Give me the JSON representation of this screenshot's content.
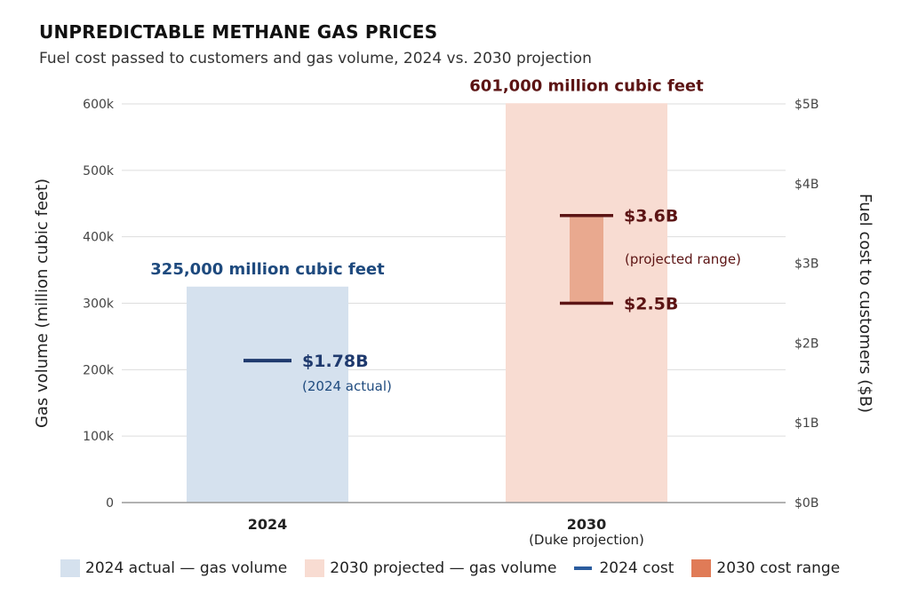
{
  "title": "UNPREDICTABLE METHANE GAS PRICES",
  "subtitle": "Fuel cost passed to customers and gas volume, 2024 vs. 2030 projection",
  "colors": {
    "bar_2024": "#d5e1ee",
    "bar_2030": "#f8dcd2",
    "cost_2024": "#1f3a6e",
    "range_2030": "#e9a98f",
    "range_line": "#5c1414",
    "label_2024": "#1e4a7e",
    "label_2030": "#5c1414",
    "legend_cost": "#2b5c9e",
    "legend_range": "#e07b57",
    "grid": "#dddddd",
    "axis": "#999999"
  },
  "chart_data": {
    "type": "bar",
    "categories": [
      "2024",
      "2030"
    ],
    "category_sublabels": [
      "",
      "(Duke projection)"
    ],
    "series": [
      {
        "name": "2024 actual — gas volume",
        "axis": "left",
        "values": [
          325000,
          null
        ]
      },
      {
        "name": "2030 projected — gas volume",
        "axis": "left",
        "values": [
          null,
          601000
        ]
      }
    ],
    "cost": {
      "actual_2024": 1.78,
      "range_2030": [
        2.5,
        3.6
      ]
    },
    "bar_labels": [
      "325,000 million cubic feet",
      "601,000 million cubic feet"
    ],
    "cost_labels": {
      "actual_value": "$1.78B",
      "actual_note": "(2024 actual)",
      "high": "$3.6B",
      "low": "$2.5B",
      "range_note": "(projected range)"
    },
    "ylabel": "Gas volume (million cubic feet)",
    "ylabel_right": "Fuel cost to customers ($B)",
    "ylim": [
      0,
      600000
    ],
    "ylim_right": [
      0,
      5
    ],
    "yticks": [
      "0",
      "100k",
      "200k",
      "300k",
      "400k",
      "500k",
      "600k"
    ],
    "yticks_right": [
      "$0B",
      "$1B",
      "$2B",
      "$3B",
      "$4B",
      "$5B"
    ],
    "grid": true,
    "legend_position": "bottom"
  },
  "legend": [
    {
      "label": "2024 actual — gas volume",
      "swatch": "box",
      "color": "#d5e1ee"
    },
    {
      "label": "2030 projected — gas volume",
      "swatch": "box",
      "color": "#f8dcd2"
    },
    {
      "label": "2024 cost",
      "swatch": "line",
      "color": "#2b5c9e"
    },
    {
      "label": "2030 cost range",
      "swatch": "box",
      "color": "#e07b57"
    }
  ]
}
